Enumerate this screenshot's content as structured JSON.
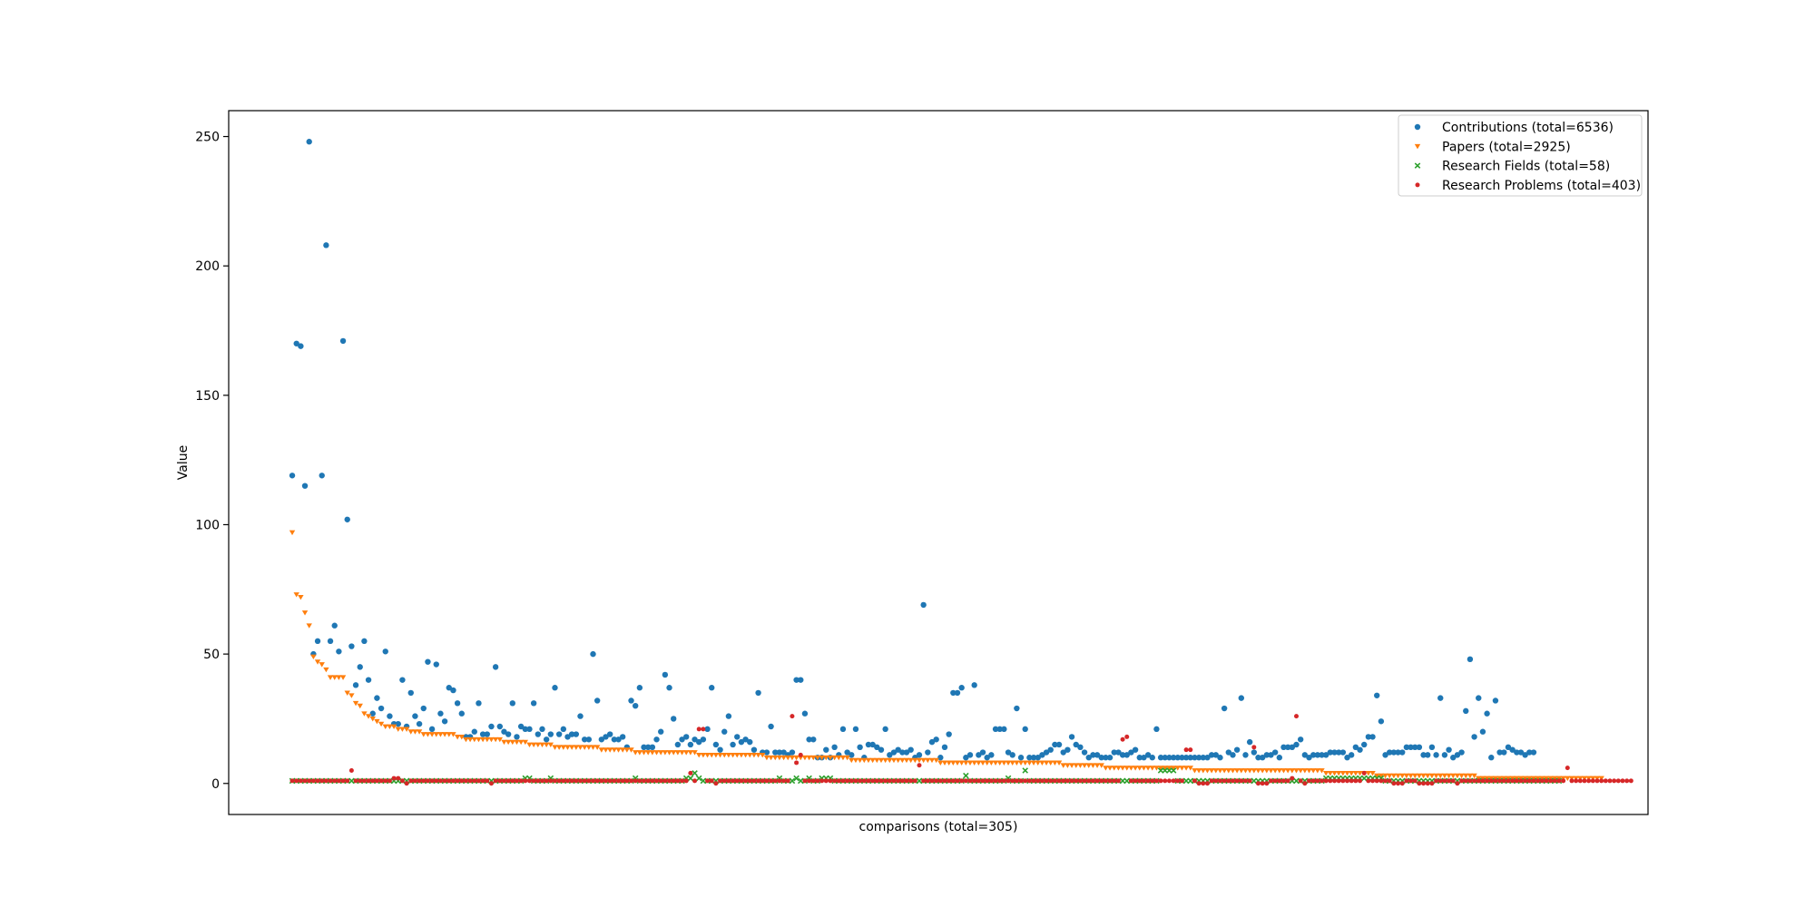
{
  "chart_data": {
    "type": "scatter",
    "title": "",
    "xlabel": "comparisons (total=305)",
    "ylabel": "Value",
    "ylim": [
      -12,
      260
    ],
    "yticks": [
      0,
      50,
      100,
      150,
      200,
      250
    ],
    "xlim": [
      -15,
      320
    ],
    "grid": false,
    "legend": "top-right",
    "series": [
      {
        "name": "Contributions (total=6536)",
        "marker": "circle",
        "color": "#1f77b4",
        "values": [
          119,
          170,
          169,
          115,
          248,
          50,
          55,
          119,
          208,
          55,
          61,
          51,
          171,
          102,
          53,
          38,
          45,
          55,
          40,
          27,
          33,
          29,
          51,
          26,
          23,
          23,
          40,
          22,
          35,
          26,
          23,
          29,
          47,
          21,
          46,
          27,
          24,
          37,
          36,
          31,
          27,
          18,
          18,
          20,
          31,
          19,
          19,
          22,
          45,
          22,
          20,
          19,
          31,
          18,
          22,
          21,
          21,
          31,
          19,
          21,
          17,
          19,
          37,
          19,
          21,
          18,
          19,
          19,
          26,
          17,
          17,
          50,
          32,
          17,
          18,
          19,
          17,
          17,
          18,
          14,
          32,
          30,
          37,
          14,
          14,
          14,
          17,
          20,
          42,
          37,
          25,
          15,
          17,
          18,
          15,
          17,
          16,
          17,
          21,
          37,
          15,
          13,
          20,
          26,
          15,
          18,
          16,
          17,
          16,
          13,
          35,
          12,
          12,
          22,
          12,
          12,
          12,
          11,
          12,
          40,
          40,
          27,
          17,
          17,
          10,
          10,
          13,
          10,
          14,
          11,
          21,
          12,
          11,
          21,
          14,
          10,
          15,
          15,
          14,
          13,
          21,
          11,
          12,
          13,
          12,
          12,
          13,
          10,
          11,
          69,
          12,
          16,
          17,
          10,
          14,
          19,
          35,
          35,
          37,
          10,
          11,
          38,
          11,
          12,
          10,
          11,
          21,
          21,
          21,
          12,
          11,
          29,
          10,
          21,
          10,
          10,
          10,
          11,
          12,
          13,
          15,
          15,
          12,
          13,
          18,
          15,
          14,
          12,
          10,
          11,
          11,
          10,
          10,
          10,
          12,
          12,
          11,
          11,
          12,
          13,
          10,
          10,
          11,
          10,
          21,
          10,
          10,
          10,
          10,
          10,
          10,
          10,
          10,
          10,
          10,
          10,
          10,
          11,
          11,
          10,
          29,
          12,
          11,
          13,
          33,
          11,
          16,
          12,
          10,
          10,
          11,
          11,
          12,
          10,
          14,
          14,
          14,
          15,
          17,
          11,
          10,
          11,
          11,
          11,
          11,
          12,
          12,
          12,
          12,
          10,
          11,
          14,
          13,
          15,
          18,
          18,
          34,
          24,
          11,
          12,
          12,
          12,
          12,
          14,
          14,
          14,
          14,
          11,
          11,
          14,
          11,
          33,
          11,
          13,
          10,
          11,
          12,
          28,
          48,
          18,
          33,
          20,
          27,
          10,
          32,
          12,
          12,
          14,
          13,
          12,
          12,
          11,
          12,
          12
        ]
      },
      {
        "name": "Papers (total=2925)",
        "marker": "triangle-down",
        "color": "#ff7f0e",
        "values": [
          97,
          73,
          72,
          66,
          61,
          49,
          47,
          46,
          44,
          41,
          41,
          41,
          41,
          35,
          34,
          31,
          30,
          27,
          26,
          25,
          24,
          23,
          22,
          22,
          22,
          21,
          21,
          21,
          20,
          20,
          20,
          19,
          19,
          19,
          19,
          19,
          19,
          19,
          19,
          18,
          18,
          17,
          17,
          17,
          17,
          17,
          17,
          17,
          17,
          17,
          16,
          16,
          16,
          16,
          16,
          16,
          15,
          15,
          15,
          15,
          15,
          15,
          14,
          14,
          14,
          14,
          14,
          14,
          14,
          14,
          14,
          14,
          14,
          13,
          13,
          13,
          13,
          13,
          13,
          13,
          13,
          12,
          12,
          12,
          12,
          12,
          12,
          12,
          12,
          12,
          12,
          12,
          12,
          12,
          12,
          12,
          11,
          11,
          11,
          11,
          11,
          11,
          11,
          11,
          11,
          11,
          11,
          11,
          11,
          11,
          11,
          11,
          10,
          10,
          10,
          10,
          10,
          10,
          10,
          10,
          10,
          10,
          10,
          10,
          10,
          10,
          10,
          10,
          10,
          10,
          10,
          10,
          9,
          9,
          9,
          9,
          9,
          9,
          9,
          9,
          9,
          9,
          9,
          9,
          9,
          9,
          9,
          9,
          9,
          9,
          9,
          9,
          9,
          8,
          8,
          8,
          8,
          8,
          8,
          8,
          8,
          8,
          8,
          8,
          8,
          8,
          8,
          8,
          8,
          8,
          8,
          8,
          8,
          8,
          8,
          8,
          8,
          8,
          8,
          8,
          8,
          8,
          7,
          7,
          7,
          7,
          7,
          7,
          7,
          7,
          7,
          7,
          6,
          6,
          6,
          6,
          6,
          6,
          6,
          6,
          6,
          6,
          6,
          6,
          6,
          6,
          6,
          6,
          6,
          6,
          6,
          6,
          6,
          5,
          5,
          5,
          5,
          5,
          5,
          5,
          5,
          5,
          5,
          5,
          5,
          5,
          5,
          5,
          5,
          5,
          5,
          5,
          5,
          5,
          5,
          5,
          5,
          5,
          5,
          5,
          5,
          5,
          5,
          5,
          4,
          4,
          4,
          4,
          4,
          4,
          4,
          4,
          4,
          4,
          4,
          4,
          3,
          3,
          3,
          3,
          3,
          3,
          3,
          3,
          3,
          3,
          3,
          3,
          3,
          3,
          3,
          3,
          3,
          3,
          3,
          3,
          3,
          3,
          3,
          3,
          2,
          2,
          2,
          2,
          2,
          2,
          2,
          2,
          2,
          2,
          2,
          2,
          2,
          2,
          2,
          2,
          2,
          2,
          2,
          2,
          2,
          2,
          2,
          2,
          2,
          2,
          2,
          2,
          2,
          2
        ]
      },
      {
        "name": "Research Fields (total=58)",
        "marker": "x",
        "color": "#2ca02c",
        "values": [
          1,
          1,
          1,
          1,
          1,
          1,
          1,
          1,
          1,
          1,
          1,
          1,
          1,
          1,
          1,
          1,
          1,
          1,
          1,
          1,
          1,
          1,
          1,
          1,
          1,
          1,
          1,
          1,
          1,
          1,
          1,
          1,
          1,
          1,
          1,
          1,
          1,
          1,
          1,
          1,
          1,
          1,
          1,
          1,
          1,
          1,
          1,
          1,
          1,
          1,
          1,
          1,
          1,
          1,
          1,
          2,
          2,
          1,
          1,
          1,
          1,
          2,
          1,
          1,
          1,
          1,
          1,
          1,
          1,
          1,
          1,
          1,
          1,
          1,
          1,
          1,
          1,
          1,
          1,
          1,
          1,
          2,
          1,
          1,
          1,
          1,
          1,
          1,
          1,
          1,
          1,
          1,
          1,
          2,
          2,
          4,
          2,
          1,
          1,
          1,
          1,
          1,
          1,
          1,
          1,
          1,
          1,
          1,
          1,
          1,
          1,
          1,
          1,
          1,
          1,
          2,
          1,
          1,
          1,
          2,
          1,
          1,
          2,
          1,
          1,
          2,
          2,
          2,
          1,
          1,
          1,
          1,
          1,
          1,
          1,
          1,
          1,
          1,
          1,
          1,
          1,
          1,
          1,
          1,
          1,
          1,
          1,
          1,
          1,
          1,
          1,
          1,
          1,
          1,
          1,
          1,
          1,
          1,
          1,
          3,
          1,
          1,
          1,
          1,
          1,
          1,
          1,
          1,
          1,
          2,
          1,
          1,
          1,
          5,
          1,
          1,
          1,
          1,
          1,
          1,
          1,
          1,
          1,
          1,
          1,
          1,
          1,
          1,
          1,
          1,
          1,
          1,
          1,
          1,
          1,
          1,
          1,
          1,
          1,
          1,
          1,
          1,
          1,
          1,
          1,
          5,
          5,
          5,
          5,
          1,
          1,
          1,
          1,
          1,
          1,
          1,
          1,
          1,
          1,
          1,
          1,
          1,
          1,
          1,
          1,
          1,
          1,
          1,
          1,
          1,
          1,
          1,
          1,
          1,
          1,
          1,
          1,
          1,
          1,
          1,
          1,
          1,
          1,
          1,
          2,
          2,
          2,
          2,
          2,
          2,
          2,
          2,
          2,
          2,
          2,
          2,
          2,
          2,
          1,
          1,
          1,
          1,
          1,
          1,
          1,
          1,
          1,
          1,
          1,
          1,
          1,
          1,
          1,
          1,
          1,
          1,
          1,
          1,
          1,
          1,
          1,
          1,
          1,
          1,
          1,
          1,
          1,
          1,
          1,
          1,
          1,
          1,
          1,
          1,
          1,
          1,
          1,
          1,
          1,
          1
        ]
      },
      {
        "name": "Research Problems (total=403)",
        "marker": "circle-small",
        "color": "#d62728",
        "values": [
          1,
          1,
          1,
          1,
          1,
          1,
          1,
          1,
          1,
          1,
          1,
          1,
          1,
          1,
          5,
          1,
          1,
          1,
          1,
          1,
          1,
          1,
          1,
          1,
          2,
          2,
          1,
          0,
          1,
          1,
          1,
          1,
          1,
          1,
          1,
          1,
          1,
          1,
          1,
          1,
          1,
          1,
          1,
          1,
          1,
          1,
          1,
          0,
          1,
          1,
          1,
          1,
          1,
          1,
          1,
          1,
          1,
          1,
          1,
          1,
          1,
          1,
          1,
          1,
          1,
          1,
          1,
          1,
          1,
          1,
          1,
          1,
          1,
          1,
          1,
          1,
          1,
          1,
          1,
          1,
          1,
          1,
          1,
          1,
          1,
          1,
          1,
          1,
          1,
          1,
          1,
          1,
          1,
          1,
          4,
          1,
          21,
          21,
          1,
          1,
          0,
          1,
          1,
          1,
          1,
          1,
          1,
          1,
          1,
          1,
          1,
          1,
          1,
          1,
          1,
          1,
          1,
          1,
          26,
          8,
          11,
          1,
          1,
          1,
          1,
          1,
          1,
          1,
          1,
          1,
          1,
          1,
          1,
          1,
          1,
          1,
          1,
          1,
          1,
          1,
          1,
          1,
          1,
          1,
          1,
          1,
          1,
          1,
          7,
          1,
          1,
          1,
          1,
          1,
          1,
          1,
          1,
          1,
          1,
          1,
          1,
          1,
          1,
          1,
          1,
          1,
          1,
          1,
          1,
          1,
          1,
          1,
          1,
          1,
          1,
          1,
          1,
          1,
          1,
          1,
          1,
          1,
          1,
          1,
          1,
          1,
          1,
          1,
          1,
          1,
          1,
          1,
          1,
          1,
          1,
          1,
          17,
          18,
          1,
          1,
          1,
          1,
          1,
          1,
          1,
          1,
          1,
          1,
          1,
          1,
          1,
          13,
          13,
          1,
          0,
          0,
          0,
          1,
          1,
          1,
          1,
          1,
          1,
          1,
          1,
          1,
          1,
          14,
          0,
          0,
          0,
          1,
          1,
          1,
          1,
          1,
          2,
          26,
          1,
          0,
          1,
          1,
          1,
          1,
          1,
          1,
          1,
          1,
          1,
          1,
          1,
          1,
          1,
          4,
          1,
          1,
          1,
          1,
          1,
          1,
          0,
          0,
          0,
          1,
          1,
          1,
          0,
          0,
          0,
          0,
          1,
          1,
          1,
          1,
          1,
          0,
          1,
          1,
          1,
          1,
          1,
          1,
          1,
          1,
          1,
          1,
          1,
          1,
          1,
          1,
          1,
          1,
          1,
          1,
          1,
          1,
          1,
          1,
          1,
          1,
          1,
          6,
          1,
          1,
          1,
          1,
          1,
          1,
          1,
          1,
          1,
          1,
          1,
          1,
          1,
          1,
          1
        ]
      }
    ]
  }
}
